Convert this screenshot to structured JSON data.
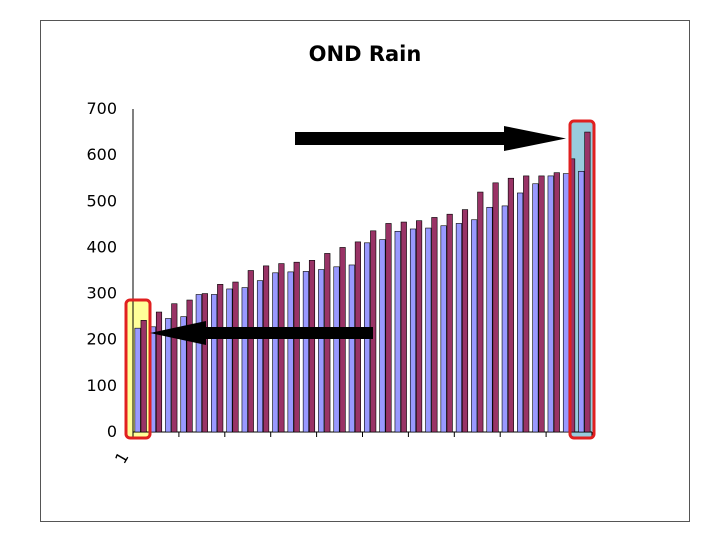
{
  "chart_data": {
    "type": "bar",
    "title": "OND Rain",
    "xlabel": "",
    "ylabel": "",
    "ylim": [
      0,
      700
    ],
    "yticks": [
      0,
      100,
      200,
      300,
      400,
      500,
      600,
      700
    ],
    "xtick_labels": [
      "1"
    ],
    "grid": false,
    "series": [
      {
        "values": [
          225,
          228,
          246,
          250,
          298,
          298,
          310,
          313,
          328,
          345,
          347,
          348,
          352,
          358,
          362,
          410,
          417,
          435,
          440,
          442,
          447,
          452,
          460,
          487,
          490,
          518,
          538,
          555,
          560,
          565
        ]
      },
      {
        "values": [
          242,
          260,
          278,
          286,
          300,
          320,
          325,
          350,
          360,
          365,
          368,
          372,
          387,
          400,
          412,
          436,
          452,
          455,
          458,
          465,
          472,
          482,
          520,
          540,
          550,
          555,
          555,
          562,
          592,
          650
        ]
      }
    ],
    "colors": {
      "series1_fill": "#9999ff",
      "series2_fill": "#993366",
      "highlight_low_fill": "#ffff99",
      "highlight_high_fill": "#99ccdd",
      "highlight_border": "#e02020",
      "arrow": "#000000"
    },
    "annotations": [
      {
        "kind": "highlight-box",
        "target": "first-category",
        "fill": "#ffff99"
      },
      {
        "kind": "highlight-box",
        "target": "last-category",
        "fill": "#99ccdd"
      },
      {
        "kind": "arrow",
        "direction": "left",
        "points_to": "first-category"
      },
      {
        "kind": "arrow",
        "direction": "right",
        "points_to": "last-category"
      }
    ]
  }
}
